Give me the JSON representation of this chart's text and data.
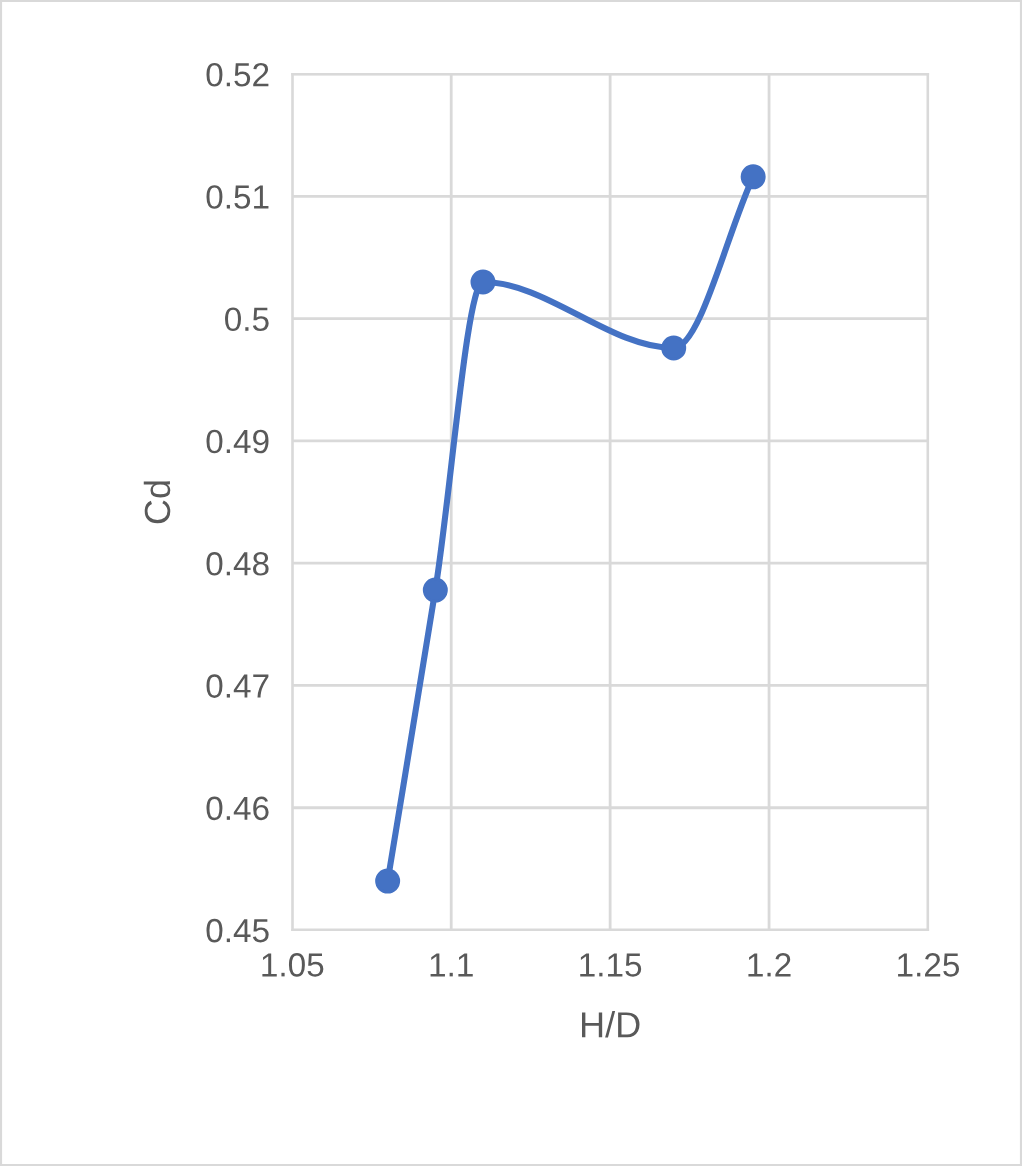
{
  "chart_data": {
    "type": "line",
    "xlabel": "H/D",
    "ylabel": "Cd",
    "x": [
      1.08,
      1.095,
      1.11,
      1.17,
      1.195
    ],
    "series": [
      {
        "color": "#4472c4",
        "values": [
          0.454,
          0.4778,
          0.503,
          0.4976,
          0.5116
        ]
      }
    ],
    "xlim": [
      1.05,
      1.25
    ],
    "xticks": [
      1.05,
      1.1,
      1.15,
      1.2,
      1.25
    ],
    "ylim": [
      0.45,
      0.52
    ],
    "yticks": [
      0.45,
      0.46,
      0.47,
      0.48,
      0.49,
      0.5,
      0.51,
      0.52
    ],
    "grid": true,
    "marker": "circle",
    "line_style": "solid",
    "legend": false
  }
}
